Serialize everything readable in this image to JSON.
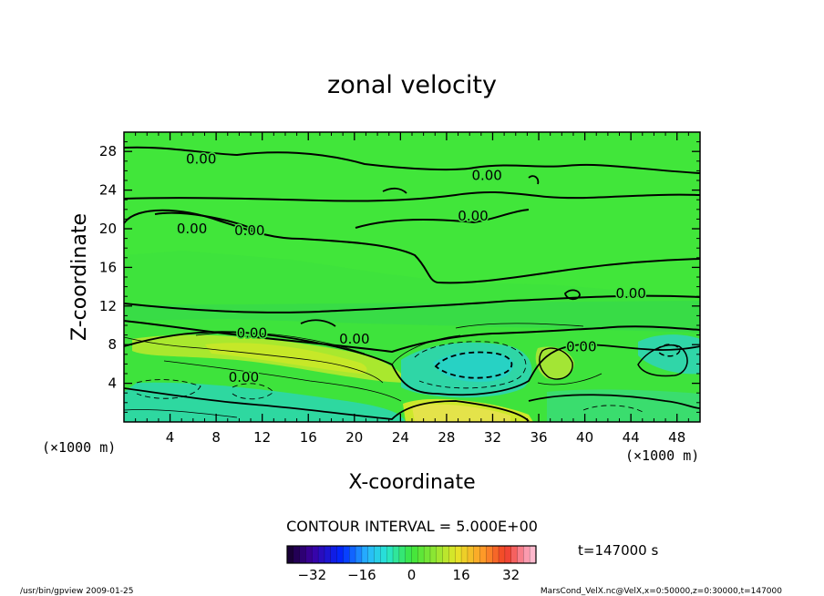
{
  "chart_data": {
    "type": "heatmap",
    "title": "zonal velocity",
    "xlabel": "X-coordinate",
    "ylabel": "Z-coordinate",
    "x_unit_left": "(×1000 m)",
    "x_unit_right": "(×1000 m)",
    "x_ticks": [
      4,
      8,
      12,
      16,
      20,
      24,
      28,
      32,
      36,
      40,
      44,
      48
    ],
    "y_ticks": [
      4,
      8,
      12,
      16,
      20,
      24,
      28
    ],
    "xlim": [
      0,
      50
    ],
    "ylim": [
      0,
      30
    ],
    "contour_interval_text": "CONTOUR INTERVAL = 5.000E+00",
    "contour_labels": [
      {
        "text": "0.00",
        "x": 6.7,
        "z": 27.2
      },
      {
        "text": "0.00",
        "x": 31.5,
        "z": 25.5
      },
      {
        "text": "0.00",
        "x": 30.3,
        "z": 21.3
      },
      {
        "text": "0.00",
        "x": 5.9,
        "z": 20.0
      },
      {
        "text": "0.00",
        "x": 10.9,
        "z": 19.8
      },
      {
        "text": "0.00",
        "x": 44.0,
        "z": 13.3
      },
      {
        "text": "0.00",
        "x": 11.1,
        "z": 9.2
      },
      {
        "text": "0.00",
        "x": 20.0,
        "z": 8.6
      },
      {
        "text": "0.00",
        "x": 39.7,
        "z": 7.8
      },
      {
        "text": "0.00",
        "x": 10.4,
        "z": 4.6
      }
    ],
    "colorbar": {
      "min": -40,
      "max": 40,
      "step": 2,
      "tick_labels": [
        "−32",
        "−16",
        "0",
        "16",
        "32"
      ],
      "tick_values": [
        -32,
        -16,
        0,
        16,
        32
      ]
    },
    "time_text": "t=147000 s"
  },
  "footer": {
    "left": "/usr/bin/gpview  2009-01-25",
    "right": "MarsCond_VelX.nc@VelX,x=0:50000,z=0:30000,t=147000"
  }
}
